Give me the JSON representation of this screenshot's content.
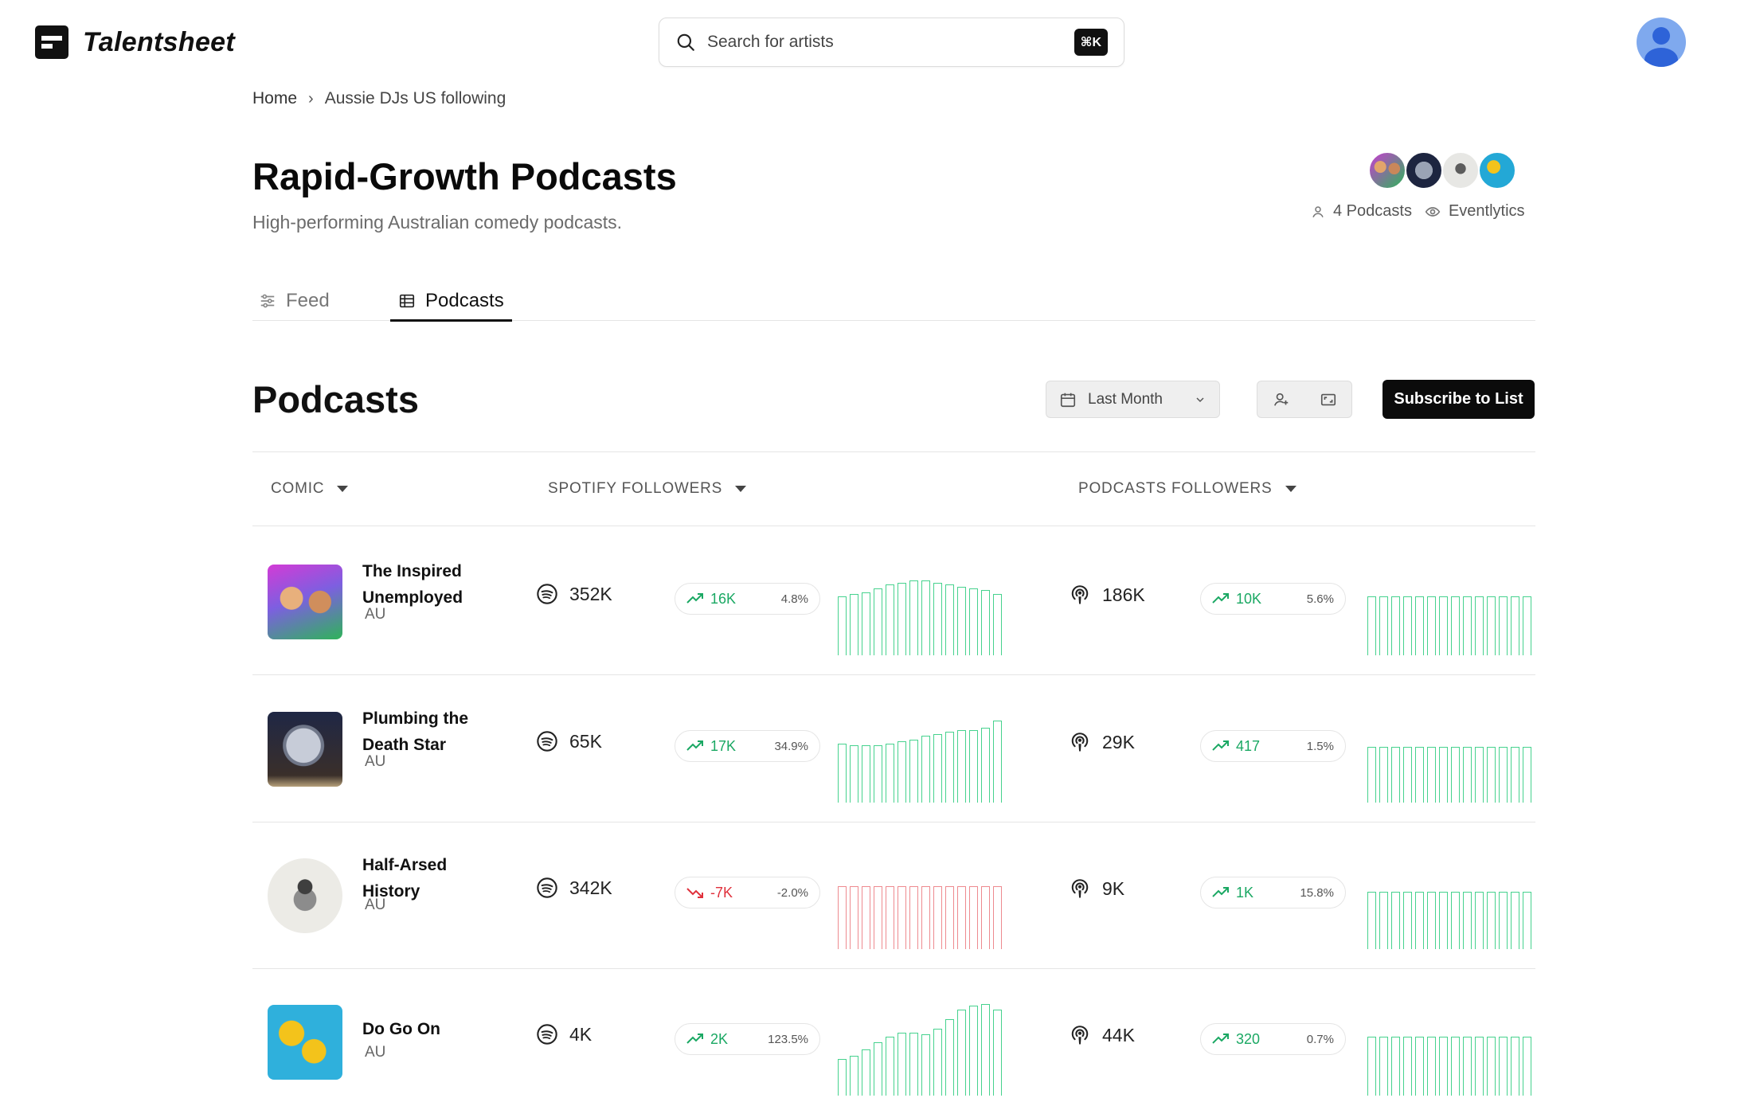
{
  "app": {
    "name": "Talentsheet"
  },
  "search": {
    "placeholder": "Search for artists",
    "shortcut": "⌘K"
  },
  "breadcrumb": {
    "home": "Home",
    "separator": "›",
    "current": "Aussie DJs US following"
  },
  "list": {
    "title": "Rapid-Growth Podcasts",
    "description": "High-performing Australian comedy podcasts.",
    "podcast_count": "4 Podcasts",
    "owner": "Eventlytics"
  },
  "tabs": [
    {
      "label": "Feed",
      "icon": "sliders-icon",
      "active": false
    },
    {
      "label": "Podcasts",
      "icon": "table-icon",
      "active": true
    }
  ],
  "section": {
    "title": "Podcasts",
    "date_range": "Last Month",
    "subscribe_label": "Subscribe to List"
  },
  "table": {
    "columns": [
      "COMIC",
      "SPOTIFY FOLLOWERS",
      "PODCASTS FOLLOWERS"
    ],
    "rows": [
      {
        "name": "The Inspired Unemployed",
        "country": "AU",
        "spotify": {
          "followers": "352K",
          "delta": "16K",
          "trend": "up",
          "pct": "4.8%",
          "history": [
            0.62,
            0.64,
            0.66,
            0.7,
            0.74,
            0.76,
            0.78,
            0.78,
            0.76,
            0.74,
            0.72,
            0.7,
            0.68,
            0.64
          ]
        },
        "podcasts": {
          "followers": "186K",
          "delta": "10K",
          "trend": "up",
          "pct": "5.6%",
          "history": [
            0.62,
            0.62,
            0.62,
            0.62,
            0.62,
            0.62,
            0.62,
            0.62,
            0.62,
            0.62,
            0.62,
            0.62,
            0.62,
            0.62
          ]
        }
      },
      {
        "name": "Plumbing the Death Star",
        "country": "AU",
        "spotify": {
          "followers": "65K",
          "delta": "17K",
          "trend": "up",
          "pct": "34.9%",
          "history": [
            0.62,
            0.6,
            0.6,
            0.6,
            0.62,
            0.64,
            0.66,
            0.7,
            0.72,
            0.74,
            0.76,
            0.76,
            0.78,
            0.86
          ]
        },
        "podcasts": {
          "followers": "29K",
          "delta": "417",
          "trend": "up",
          "pct": "1.5%",
          "history": [
            0.58,
            0.58,
            0.58,
            0.58,
            0.58,
            0.58,
            0.58,
            0.58,
            0.58,
            0.58,
            0.58,
            0.58,
            0.58,
            0.58
          ]
        }
      },
      {
        "name": "Half-Arsed History",
        "country": "AU",
        "spotify": {
          "followers": "342K",
          "delta": "-7K",
          "trend": "down",
          "pct": "-2.0%",
          "history": [
            0.66,
            0.66,
            0.66,
            0.66,
            0.66,
            0.66,
            0.66,
            0.66,
            0.66,
            0.66,
            0.66,
            0.66,
            0.66,
            0.66
          ]
        },
        "podcasts": {
          "followers": "9K",
          "delta": "1K",
          "trend": "up",
          "pct": "15.8%",
          "history": [
            0.6,
            0.6,
            0.6,
            0.6,
            0.6,
            0.6,
            0.6,
            0.6,
            0.6,
            0.6,
            0.6,
            0.6,
            0.6,
            0.6
          ]
        }
      },
      {
        "name": "Do Go On",
        "country": "AU",
        "spotify": {
          "followers": "4K",
          "delta": "2K",
          "trend": "up",
          "pct": "123.5%",
          "history": [
            0.38,
            0.42,
            0.48,
            0.56,
            0.62,
            0.66,
            0.66,
            0.64,
            0.7,
            0.8,
            0.9,
            0.94,
            0.96,
            0.9
          ]
        },
        "podcasts": {
          "followers": "44K",
          "delta": "320",
          "trend": "up",
          "pct": "0.7%",
          "history": [
            0.62,
            0.62,
            0.62,
            0.62,
            0.62,
            0.62,
            0.62,
            0.62,
            0.62,
            0.62,
            0.62,
            0.62,
            0.62,
            0.62
          ]
        }
      }
    ]
  },
  "colors": {
    "up": "#1aa863",
    "down": "#e0313c",
    "bar_up": "#46d28e",
    "bar_down": "#ee8a8f"
  }
}
